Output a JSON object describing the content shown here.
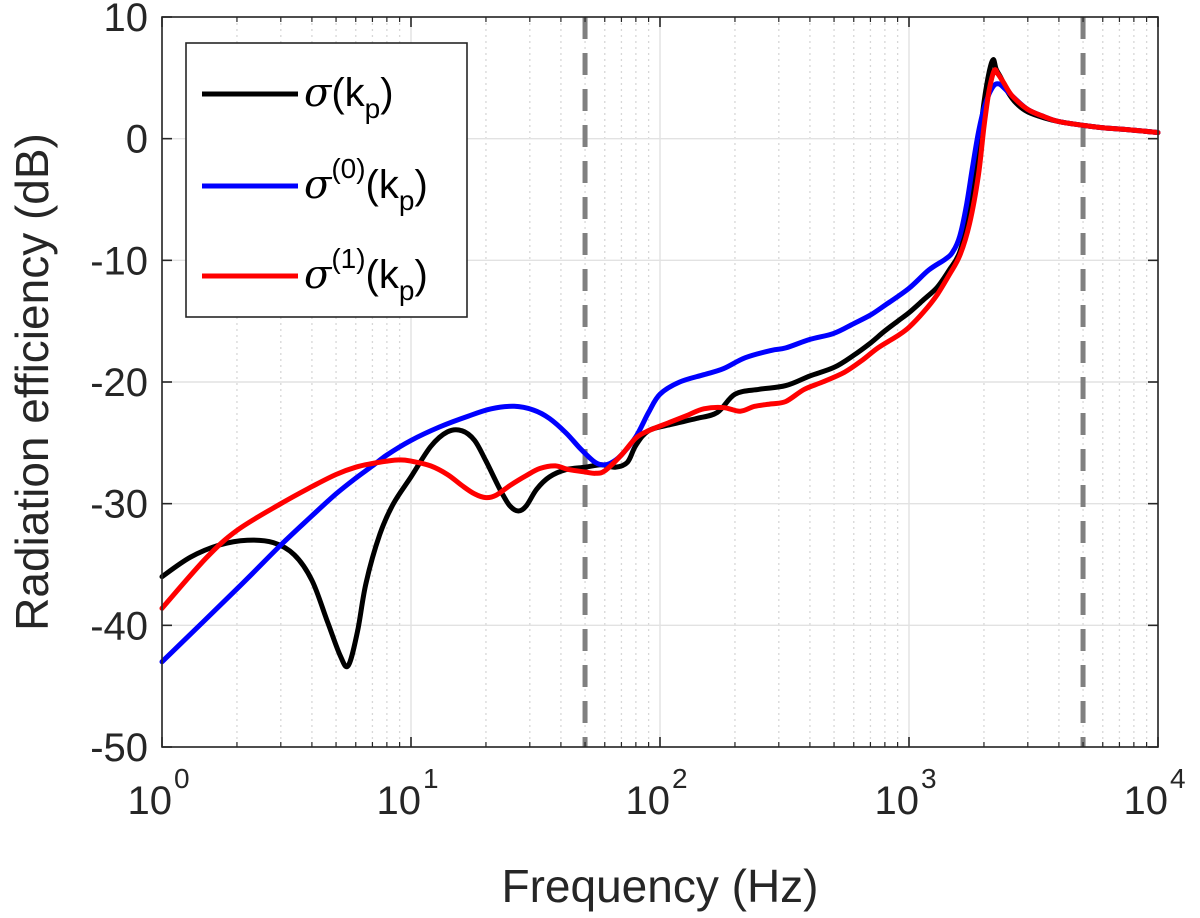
{
  "chart_data": {
    "type": "line",
    "title": "",
    "xlabel": "Frequency (Hz)",
    "ylabel": "Radiation efficiency (dB)",
    "xscale": "log",
    "xlim": [
      1,
      10000
    ],
    "ylim": [
      -50,
      10
    ],
    "grid": true,
    "x_ticks": [
      {
        "value": 1,
        "base": "10",
        "exp": "0"
      },
      {
        "value": 10,
        "base": "10",
        "exp": "1"
      },
      {
        "value": 100,
        "base": "10",
        "exp": "2"
      },
      {
        "value": 1000,
        "base": "10",
        "exp": "3"
      },
      {
        "value": 10000,
        "base": "10",
        "exp": "4"
      }
    ],
    "y_ticks": [
      {
        "value": 10,
        "label": "10"
      },
      {
        "value": 0,
        "label": "0"
      },
      {
        "value": -10,
        "label": "-10"
      },
      {
        "value": -20,
        "label": "-20"
      },
      {
        "value": -30,
        "label": "-30"
      },
      {
        "value": -40,
        "label": "-40"
      },
      {
        "value": -50,
        "label": "-50"
      }
    ],
    "vlines": [
      {
        "x": 50,
        "color": "#808080",
        "style": "dashed"
      },
      {
        "x": 5000,
        "color": "#808080",
        "style": "dashed"
      }
    ],
    "legend_position": "top-left",
    "series": [
      {
        "name": "σ(kp)",
        "legend": {
          "sym": "σ",
          "sup": "",
          "arg": "k",
          "sub": "p"
        },
        "color": "#000000",
        "points": [
          [
            1,
            -36
          ],
          [
            1.3,
            -34.4
          ],
          [
            1.7,
            -33.4
          ],
          [
            2.2,
            -33
          ],
          [
            2.8,
            -33.2
          ],
          [
            3.4,
            -34.2
          ],
          [
            4,
            -36.3
          ],
          [
            4.6,
            -39.6
          ],
          [
            5.2,
            -42.5
          ],
          [
            5.6,
            -43.3
          ],
          [
            6.1,
            -40.5
          ],
          [
            6.6,
            -36.5
          ],
          [
            7.5,
            -32.5
          ],
          [
            8.5,
            -30
          ],
          [
            10,
            -27.8
          ],
          [
            12,
            -25.3
          ],
          [
            14,
            -24.1
          ],
          [
            16,
            -24
          ],
          [
            18,
            -24.8
          ],
          [
            20,
            -26.5
          ],
          [
            23,
            -29
          ],
          [
            25,
            -30.2
          ],
          [
            27,
            -30.6
          ],
          [
            29,
            -30.2
          ],
          [
            32,
            -28.8
          ],
          [
            36,
            -27.8
          ],
          [
            42,
            -27.2
          ],
          [
            50,
            -27
          ],
          [
            58,
            -26.8
          ],
          [
            66,
            -27
          ],
          [
            74,
            -26.6
          ],
          [
            80,
            -25.2
          ],
          [
            90,
            -24
          ],
          [
            110,
            -23.5
          ],
          [
            140,
            -23
          ],
          [
            170,
            -22.5
          ],
          [
            200,
            -21
          ],
          [
            250,
            -20.6
          ],
          [
            320,
            -20.3
          ],
          [
            400,
            -19.5
          ],
          [
            500,
            -18.8
          ],
          [
            600,
            -17.8
          ],
          [
            700,
            -16.8
          ],
          [
            800,
            -15.8
          ],
          [
            900,
            -15
          ],
          [
            1000,
            -14.3
          ],
          [
            1150,
            -13.2
          ],
          [
            1300,
            -12.2
          ],
          [
            1450,
            -10.8
          ],
          [
            1600,
            -9.3
          ],
          [
            1750,
            -6
          ],
          [
            1880,
            -1.5
          ],
          [
            2000,
            3
          ],
          [
            2100,
            5.5
          ],
          [
            2180,
            6.5
          ],
          [
            2240,
            5.7
          ],
          [
            2340,
            5
          ],
          [
            2500,
            3.8
          ],
          [
            2700,
            2.9
          ],
          [
            3000,
            2.2
          ],
          [
            3500,
            1.7
          ],
          [
            4000,
            1.4
          ],
          [
            5000,
            1.1
          ],
          [
            6000,
            0.9
          ],
          [
            8000,
            0.7
          ],
          [
            10000,
            0.5
          ]
        ]
      },
      {
        "name": "σ(0)(kp)",
        "legend": {
          "sym": "σ",
          "sup": "(0)",
          "arg": "k",
          "sub": "p"
        },
        "color": "#0000ff",
        "points": [
          [
            1,
            -43
          ],
          [
            2,
            -37
          ],
          [
            3,
            -33.4
          ],
          [
            4,
            -31
          ],
          [
            5,
            -29.2
          ],
          [
            6,
            -27.9
          ],
          [
            7,
            -26.9
          ],
          [
            8,
            -26
          ],
          [
            10,
            -24.8
          ],
          [
            13,
            -23.7
          ],
          [
            17,
            -22.8
          ],
          [
            21,
            -22.2
          ],
          [
            26,
            -22
          ],
          [
            31,
            -22.3
          ],
          [
            36,
            -23
          ],
          [
            42,
            -24.2
          ],
          [
            48,
            -25.5
          ],
          [
            54,
            -26.5
          ],
          [
            58,
            -26.8
          ],
          [
            63,
            -26.7
          ],
          [
            70,
            -26
          ],
          [
            80,
            -24.5
          ],
          [
            90,
            -22.5
          ],
          [
            100,
            -21
          ],
          [
            120,
            -20
          ],
          [
            150,
            -19.4
          ],
          [
            180,
            -18.9
          ],
          [
            220,
            -18
          ],
          [
            280,
            -17.4
          ],
          [
            320,
            -17.2
          ],
          [
            400,
            -16.5
          ],
          [
            500,
            -16
          ],
          [
            600,
            -15.2
          ],
          [
            700,
            -14.5
          ],
          [
            800,
            -13.7
          ],
          [
            1000,
            -12.3
          ],
          [
            1200,
            -10.8
          ],
          [
            1400,
            -9.9
          ],
          [
            1500,
            -9.3
          ],
          [
            1600,
            -8
          ],
          [
            1700,
            -5.5
          ],
          [
            1800,
            -2.3
          ],
          [
            1900,
            0.5
          ],
          [
            2000,
            2.5
          ],
          [
            2100,
            3.7
          ],
          [
            2200,
            4.4
          ],
          [
            2300,
            4.5
          ],
          [
            2400,
            4.2
          ],
          [
            2600,
            3.5
          ],
          [
            3000,
            2.4
          ],
          [
            3500,
            1.8
          ],
          [
            4000,
            1.4
          ],
          [
            5000,
            1.1
          ],
          [
            6000,
            0.9
          ],
          [
            8000,
            0.7
          ],
          [
            10000,
            0.5
          ]
        ]
      },
      {
        "name": "σ(1)(kp)",
        "legend": {
          "sym": "σ",
          "sup": "(1)",
          "arg": "k",
          "sub": "p"
        },
        "color": "#ff0000",
        "points": [
          [
            1,
            -38.6
          ],
          [
            1.5,
            -34.5
          ],
          [
            2,
            -32.2
          ],
          [
            3,
            -30
          ],
          [
            4,
            -28.6
          ],
          [
            5,
            -27.6
          ],
          [
            6,
            -27
          ],
          [
            7,
            -26.7
          ],
          [
            8,
            -26.5
          ],
          [
            9,
            -26.4
          ],
          [
            10,
            -26.5
          ],
          [
            12,
            -26.9
          ],
          [
            14,
            -27.6
          ],
          [
            16,
            -28.5
          ],
          [
            18,
            -29.2
          ],
          [
            20,
            -29.5
          ],
          [
            22,
            -29.3
          ],
          [
            25,
            -28.5
          ],
          [
            29,
            -27.7
          ],
          [
            33,
            -27.1
          ],
          [
            38,
            -26.9
          ],
          [
            43,
            -27.2
          ],
          [
            50,
            -27.4
          ],
          [
            55,
            -27.5
          ],
          [
            60,
            -27.3
          ],
          [
            70,
            -26
          ],
          [
            80,
            -24.6
          ],
          [
            90,
            -24
          ],
          [
            110,
            -23.3
          ],
          [
            130,
            -22.7
          ],
          [
            150,
            -22.2
          ],
          [
            180,
            -22.1
          ],
          [
            210,
            -22.4
          ],
          [
            240,
            -22
          ],
          [
            280,
            -21.8
          ],
          [
            320,
            -21.6
          ],
          [
            380,
            -20.6
          ],
          [
            450,
            -20
          ],
          [
            550,
            -19.2
          ],
          [
            650,
            -18.2
          ],
          [
            750,
            -17.2
          ],
          [
            900,
            -16.2
          ],
          [
            1000,
            -15.5
          ],
          [
            1150,
            -14.2
          ],
          [
            1300,
            -12.8
          ],
          [
            1450,
            -11.2
          ],
          [
            1600,
            -9.6
          ],
          [
            1750,
            -7
          ],
          [
            1900,
            -3
          ],
          [
            2000,
            1
          ],
          [
            2100,
            4
          ],
          [
            2200,
            5.6
          ],
          [
            2280,
            5.3
          ],
          [
            2400,
            4.6
          ],
          [
            2600,
            3.5
          ],
          [
            3000,
            2.4
          ],
          [
            3500,
            1.8
          ],
          [
            4000,
            1.4
          ],
          [
            5000,
            1.1
          ],
          [
            6000,
            0.9
          ],
          [
            8000,
            0.7
          ],
          [
            10000,
            0.5
          ]
        ]
      }
    ]
  }
}
